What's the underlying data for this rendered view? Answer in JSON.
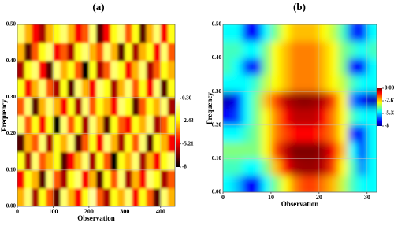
{
  "chart_data": [
    {
      "type": "heatmap",
      "title": "(a)",
      "xlabel": "Observation",
      "ylabel": "Frequency",
      "colormap": "hot",
      "grid": true,
      "xlim": [
        0,
        440
      ],
      "ylim": [
        0,
        0.5
      ],
      "xticks": [
        0,
        100,
        200,
        300,
        400
      ],
      "yticks": [
        {
          "value": 0,
          "label": "0.00"
        },
        {
          "value": 0.1,
          "label": "0.10"
        },
        {
          "value": 0.2,
          "label": "0.20"
        },
        {
          "value": 0.3,
          "label": "0.30"
        },
        {
          "value": 0.4,
          "label": "0.40"
        },
        {
          "value": 0.5,
          "label": "0.50"
        }
      ],
      "clim": [
        -8,
        0.3
      ],
      "cticks": [
        {
          "value": 0.3,
          "label": "0.30"
        },
        -2.43,
        -5.21,
        -8
      ],
      "x": [
        10,
        30,
        50,
        70,
        90,
        110,
        130,
        150,
        170,
        190,
        210,
        230,
        250,
        270,
        290,
        310,
        330,
        350,
        370,
        390,
        410,
        430
      ],
      "y": [
        0.025,
        0.075,
        0.125,
        0.175,
        0.225,
        0.275,
        0.325,
        0.375,
        0.425,
        0.475
      ],
      "z": [
        [
          -3,
          -1,
          -6,
          -2,
          -4,
          -7,
          -1,
          -3,
          -5,
          -2,
          -0.5,
          -4,
          -6,
          -2,
          -3,
          -1,
          -5,
          -2,
          -4,
          -7,
          -1,
          -3
        ],
        [
          -5,
          -2,
          -3,
          -7,
          -1,
          -4,
          -6,
          -2,
          -1,
          -5,
          -3,
          -7,
          -2,
          -4,
          -1,
          -6,
          -3,
          -5,
          -1,
          -2,
          -6,
          -4
        ],
        [
          -2,
          -6,
          -1,
          -4,
          -3,
          -2,
          -7,
          -5,
          -3,
          -1,
          -6,
          -2,
          -4,
          -8,
          -2,
          -3,
          -1,
          -6,
          -3,
          -5,
          -2,
          -1
        ],
        [
          -7,
          -3,
          -4,
          -1,
          -6,
          -2,
          -3,
          -1,
          -7,
          -4,
          -2,
          -5,
          -1,
          -3,
          -6,
          -2,
          -4,
          -1,
          -7,
          -2,
          -3,
          -5
        ],
        [
          -1,
          -4,
          -2,
          -5,
          -2,
          -8,
          -1,
          -4,
          -2,
          -6,
          -1,
          -3,
          -7,
          -2,
          -4,
          -5,
          -2,
          -3,
          -1,
          -6,
          -4,
          -2
        ],
        [
          -4,
          -1,
          -7,
          -3,
          -1,
          -3,
          -5,
          -2,
          -6,
          -1,
          -4,
          -2,
          -3,
          -5,
          -1,
          -2,
          -7,
          -4,
          -2,
          -3,
          -1,
          -6
        ],
        [
          -2,
          -5,
          -3,
          -1,
          -4,
          -6,
          -2,
          -7,
          -1,
          -3,
          -5,
          -1,
          -2,
          -6,
          -3,
          -1,
          -4,
          -2,
          -5,
          -1,
          -7,
          -2
        ],
        [
          -6,
          -2,
          -1,
          -5,
          -7,
          -1,
          -3,
          -2,
          -4,
          -8,
          -2,
          -6,
          -4,
          -1,
          -2,
          -5,
          -3,
          -1,
          -6,
          -4,
          -2,
          -3
        ],
        [
          -3,
          -7,
          -4,
          -2,
          -1,
          -5,
          -4,
          -6,
          -2,
          -1,
          -3,
          -4,
          -1,
          -3,
          -7,
          -2,
          -6,
          -3,
          -2,
          -5,
          -1,
          -4
        ],
        [
          -1,
          -3,
          -5,
          -6,
          -3,
          -2,
          -1,
          -3,
          -5,
          -4,
          -1,
          -7,
          -5,
          -2,
          -1,
          -4,
          -2,
          -7,
          -3,
          -1,
          -5,
          -2
        ]
      ]
    },
    {
      "type": "heatmap",
      "title": "(b)",
      "xlabel": "Observation",
      "ylabel": "Frequency",
      "colormap": "jet",
      "grid": true,
      "xlim": [
        0,
        32
      ],
      "ylim": [
        0,
        0.5
      ],
      "xticks": [
        0,
        10,
        20,
        30
      ],
      "yticks": [
        {
          "value": 0,
          "label": "0.00"
        },
        {
          "value": 0.1,
          "label": "0.10"
        },
        {
          "value": 0.2,
          "label": "0.20"
        },
        {
          "value": 0.3,
          "label": "0.30"
        },
        {
          "value": 0.4,
          "label": "0.40"
        },
        {
          "value": 0.5,
          "label": "0.50"
        }
      ],
      "clim": [
        -8,
        0
      ],
      "cticks": [
        {
          "value": 0,
          "label": "0.00"
        },
        -2.67,
        -5.33,
        -8
      ],
      "x": [
        1,
        3,
        5,
        7,
        9,
        11,
        13,
        15,
        17,
        19,
        21,
        23,
        25,
        27,
        29,
        31
      ],
      "y": [
        0.025,
        0.075,
        0.125,
        0.175,
        0.225,
        0.275,
        0.325,
        0.375,
        0.425,
        0.475
      ],
      "z": [
        [
          -5,
          -5.5,
          -7,
          -7,
          -5,
          -4,
          -3,
          -2,
          -1.5,
          -1.5,
          -2,
          -2.5,
          -3.5,
          -4.5,
          -5,
          -5
        ],
        [
          -4.5,
          -4.5,
          -5,
          -5,
          -4,
          -2.5,
          -1,
          -0.3,
          -0.2,
          -0.2,
          -0.5,
          -1.5,
          -3,
          -4.5,
          -6,
          -5
        ],
        [
          -4,
          -4,
          -4,
          -4,
          -3,
          -1.5,
          -0.5,
          0,
          0,
          0,
          -0.3,
          -1,
          -2.5,
          -5,
          -7,
          -5
        ],
        [
          -5,
          -5,
          -4.5,
          -4,
          -3,
          -2,
          -1.5,
          -1,
          -1,
          -1,
          -1.5,
          -2,
          -3,
          -6.5,
          -7,
          -5
        ],
        [
          -7,
          -6.5,
          -5,
          -4,
          -3,
          -2,
          -1,
          -0.5,
          -0.5,
          -0.5,
          -1,
          -2,
          -3,
          -4.5,
          -5,
          -5
        ],
        [
          -7.5,
          -7,
          -5,
          -4,
          -2.5,
          -1.5,
          -0.5,
          -0.2,
          -0.1,
          -0.2,
          -0.5,
          -1.5,
          -3,
          -6,
          -7,
          -7.5
        ],
        [
          -5,
          -5,
          -5,
          -4.5,
          -3.5,
          -3,
          -2.5,
          -2,
          -2,
          -2,
          -2.5,
          -3,
          -3.5,
          -4.5,
          -5,
          -5
        ],
        [
          -4.5,
          -5,
          -6.5,
          -7,
          -4,
          -3,
          -2.5,
          -2,
          -2,
          -2,
          -2.5,
          -3,
          -4,
          -7,
          -7,
          -5
        ],
        [
          -4.5,
          -4.5,
          -5,
          -5,
          -4,
          -3,
          -2.5,
          -2,
          -2,
          -2,
          -2.5,
          -3,
          -4,
          -4.5,
          -5,
          -4.5
        ],
        [
          -5,
          -5,
          -7,
          -7,
          -5,
          -4,
          -3,
          -2.5,
          -2.5,
          -2.5,
          -3,
          -3.5,
          -4.5,
          -6.5,
          -7,
          -5
        ]
      ]
    }
  ]
}
